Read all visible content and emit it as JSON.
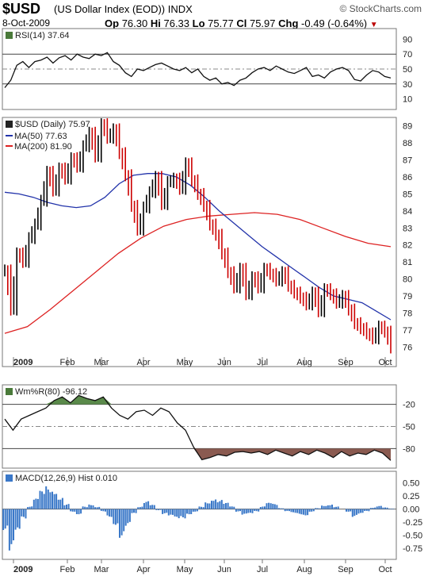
{
  "header": {
    "symbol": "$USD",
    "description": "(US Dollar Index (EOD)) INDX",
    "brand": "© StockCharts.com",
    "date": "8-Oct-2009",
    "open_label": "Op",
    "open": "76.30",
    "high_label": "Hi",
    "high": "76.33",
    "low_label": "Lo",
    "low": "75.77",
    "close_label": "Cl",
    "close": "75.97",
    "change_label": "Chg",
    "change": "-0.49 (-0.64%)"
  },
  "colors": {
    "price_up": "#000000",
    "price_down": "#cc0000",
    "ma50": "#2233aa",
    "ma200": "#dd2222",
    "wmr_over": "#5a8a4a",
    "wmr_under": "#8a5a50",
    "macd_hist": "#3a78c8",
    "grid": "#999999"
  },
  "chart_data": [
    {
      "type": "line",
      "title": "RSI(14) 37.64",
      "ylim": [
        0,
        100
      ],
      "ticks": [
        "90",
        "70",
        "50",
        "30",
        "10"
      ],
      "tick_values": [
        90,
        70,
        50,
        30,
        10
      ],
      "series": [
        {
          "name": "RSI(14)",
          "values": [
            25,
            35,
            55,
            60,
            52,
            60,
            62,
            66,
            58,
            65,
            68,
            62,
            70,
            66,
            64,
            70,
            68,
            72,
            60,
            55,
            45,
            40,
            50,
            48,
            52,
            56,
            58,
            54,
            50,
            48,
            52,
            45,
            50,
            40,
            35,
            38,
            30,
            32,
            28,
            35,
            38,
            45,
            50,
            52,
            48,
            54,
            50,
            46,
            44,
            48,
            52,
            40,
            42,
            38,
            46,
            50,
            52,
            48,
            36,
            34,
            42,
            48,
            46,
            40,
            38
          ]
        }
      ]
    },
    {
      "type": "line",
      "title": "$USD (Daily) 75.97",
      "legend": [
        "MA(50) 77.63",
        "MA(200) 81.90"
      ],
      "ylim": [
        75.5,
        89.5
      ],
      "ticks": [
        "89",
        "88",
        "87",
        "86",
        "85",
        "84",
        "83",
        "82",
        "81",
        "80",
        "79",
        "78",
        "77",
        "76"
      ],
      "tick_values": [
        89,
        88,
        87,
        86,
        85,
        84,
        83,
        82,
        81,
        80,
        79,
        78,
        77,
        76
      ],
      "x_ticks": [
        "2009",
        "Feb",
        "Mar",
        "Apr",
        "May",
        "Jun",
        "Jul",
        "Aug",
        "Sep",
        "Oct"
      ],
      "series": [
        {
          "name": "$USD (Daily)",
          "values": [
            80.5,
            78.2,
            81.5,
            81,
            82.4,
            83.2,
            84.6,
            86.3,
            85.2,
            86.5,
            85.9,
            87.1,
            86.6,
            87.8,
            88.6,
            87.2,
            89.1,
            88.3,
            88.8,
            87.4,
            86.1,
            84.3,
            82.9,
            84.2,
            85.1,
            86,
            84.4,
            85.7,
            85.9,
            85.3,
            86.8,
            85.8,
            85,
            84.3,
            83.2,
            82.6,
            81.5,
            80.4,
            79.5,
            80.6,
            79.1,
            80.1,
            79.5,
            80.6,
            80.3,
            79.9,
            80.4,
            79.6,
            79.2,
            78.9,
            78.5,
            79.2,
            78.1,
            79.4,
            79.1,
            78.6,
            79,
            78.2,
            77.4,
            77.1,
            76.8,
            76.5,
            77.2,
            76.9,
            75.97
          ]
        },
        {
          "name": "MA(50)",
          "values": [
            85.1,
            85,
            84.8,
            84.5,
            84.3,
            84.2,
            84.3,
            84.8,
            85.6,
            86.1,
            86.2,
            86.2,
            86,
            85.5,
            84.8,
            84,
            83.3,
            82.6,
            81.9,
            81.3,
            80.7,
            80.1,
            79.5,
            79,
            78.8,
            78.6,
            78.1,
            77.6
          ]
        },
        {
          "name": "MA(200)",
          "values": [
            76.8,
            77.2,
            78.2,
            79.3,
            80.4,
            81.5,
            82.4,
            83.1,
            83.5,
            83.7,
            83.8,
            83.9,
            83.8,
            83.5,
            83,
            82.5,
            82.1,
            81.9
          ]
        }
      ]
    },
    {
      "type": "line",
      "title": "Wm%R(80) -96.12",
      "ylim": [
        -100,
        0
      ],
      "ticks": [
        "-20",
        "-50",
        "-80"
      ],
      "tick_values": [
        -20,
        -50,
        -80
      ],
      "series": [
        {
          "name": "Wm%R(80)",
          "values": [
            -40,
            -55,
            -40,
            -35,
            -30,
            -25,
            -15,
            -10,
            -18,
            -8,
            -12,
            -15,
            -10,
            -25,
            -35,
            -40,
            -30,
            -28,
            -35,
            -25,
            -30,
            -45,
            -55,
            -78,
            -95,
            -92,
            -88,
            -90,
            -85,
            -84,
            -86,
            -84,
            -88,
            -82,
            -86,
            -90,
            -84,
            -88,
            -82,
            -86,
            -92,
            -84,
            -90,
            -86,
            -88,
            -82,
            -86,
            -96
          ]
        }
      ]
    },
    {
      "type": "bar",
      "title": "MACD(12,26,9) Hist 0.010",
      "ylim": [
        -0.9,
        0.6
      ],
      "ticks": [
        "0.50",
        "0.25",
        "0.00",
        "-0.25",
        "-0.50",
        "-0.75"
      ],
      "tick_values": [
        0.5,
        0.25,
        0,
        -0.25,
        -0.5,
        -0.75
      ],
      "x_ticks": [
        "2009",
        "Feb",
        "Mar",
        "Apr",
        "May",
        "Jun",
        "Jul",
        "Aug",
        "Sep",
        "Oct"
      ],
      "series": [
        {
          "name": "Hist",
          "values": [
            -0.4,
            -0.85,
            -0.5,
            -0.2,
            0.05,
            0.2,
            0.35,
            0.45,
            0.4,
            0.25,
            0.1,
            -0.05,
            -0.1,
            0.05,
            0.1,
            0.05,
            -0.05,
            -0.15,
            -0.3,
            -0.55,
            -0.35,
            -0.1,
            0.05,
            0.15,
            0.08,
            -0.02,
            -0.1,
            -0.15,
            -0.2,
            -0.18,
            -0.1,
            -0.05,
            0.05,
            0.15,
            0.22,
            0.18,
            0.12,
            0.05,
            -0.05,
            -0.12,
            -0.1,
            -0.05,
            0.05,
            0.12,
            0.1,
            0.02,
            -0.05,
            -0.08,
            -0.1,
            -0.12,
            -0.05,
            0.02,
            0.08,
            0.1,
            0.05,
            0.0,
            -0.05,
            -0.15,
            -0.1,
            -0.05,
            0.03,
            0.06,
            0.03,
            0.01
          ]
        }
      ]
    }
  ]
}
